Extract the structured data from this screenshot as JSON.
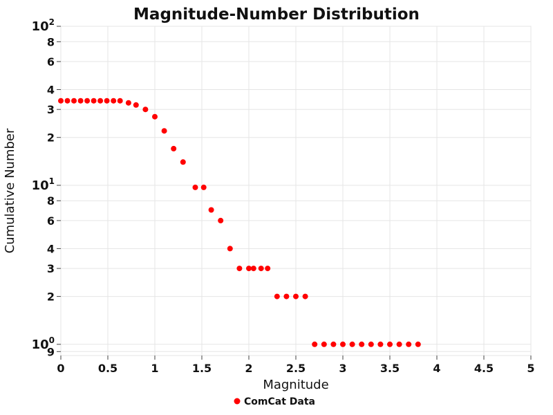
{
  "title": "Magnitude-Number Distribution",
  "chart_data": {
    "type": "scatter",
    "title": "Magnitude-Number Distribution",
    "xlabel": "Magnitude",
    "ylabel": "Cumulative Number",
    "x_range": [
      0,
      5
    ],
    "y_range": [
      0.85,
      100
    ],
    "y_scale": "log",
    "grid": true,
    "grid_color": "#e5e5e5",
    "tick_color": "#424242",
    "legend_position": "bottom-center",
    "x_ticks": [
      {
        "v": 0,
        "label": "0"
      },
      {
        "v": 0.5,
        "label": "0.5"
      },
      {
        "v": 1,
        "label": "1"
      },
      {
        "v": 1.5,
        "label": "1.5"
      },
      {
        "v": 2,
        "label": "2"
      },
      {
        "v": 2.5,
        "label": "2.5"
      },
      {
        "v": 3,
        "label": "3"
      },
      {
        "v": 3.5,
        "label": "3.5"
      },
      {
        "v": 4,
        "label": "4"
      },
      {
        "v": 4.5,
        "label": "4.5"
      },
      {
        "v": 5,
        "label": "5"
      }
    ],
    "y_ticks": [
      {
        "v": 100,
        "base": "10",
        "exp": "2"
      },
      {
        "v": 80,
        "label": "8"
      },
      {
        "v": 60,
        "label": "6"
      },
      {
        "v": 40,
        "label": "4"
      },
      {
        "v": 30,
        "label": "3"
      },
      {
        "v": 20,
        "label": "2"
      },
      {
        "v": 10,
        "base": "10",
        "exp": "1"
      },
      {
        "v": 8,
        "label": "8"
      },
      {
        "v": 6,
        "label": "6"
      },
      {
        "v": 4,
        "label": "4"
      },
      {
        "v": 3,
        "label": "3"
      },
      {
        "v": 2,
        "label": "2"
      },
      {
        "v": 1,
        "base": "10",
        "exp": "0"
      },
      {
        "v": 0.9,
        "label": "9"
      }
    ],
    "series": [
      {
        "name": "ComCat Data",
        "color": "#ff0000",
        "marker": "circle",
        "x": [
          0.0,
          0.07,
          0.14,
          0.21,
          0.28,
          0.35,
          0.42,
          0.49,
          0.56,
          0.63,
          0.72,
          0.8,
          0.9,
          1.0,
          1.1,
          1.2,
          1.3,
          1.43,
          1.52,
          1.6,
          1.7,
          1.8,
          1.9,
          2.0,
          2.05,
          2.13,
          2.2,
          2.3,
          2.4,
          2.5,
          2.6,
          2.7,
          2.8,
          2.9,
          3.0,
          3.1,
          3.2,
          3.3,
          3.4,
          3.5,
          3.6,
          3.7,
          3.8
        ],
        "y": [
          34,
          34,
          34,
          34,
          34,
          34,
          34,
          34,
          34,
          34,
          33,
          32,
          30,
          27,
          22,
          17,
          14,
          9.7,
          9.7,
          7,
          6,
          4,
          3,
          3,
          3,
          3,
          3,
          2,
          2,
          2,
          2,
          1,
          1,
          1,
          1,
          1,
          1,
          1,
          1,
          1,
          1,
          1,
          1
        ]
      }
    ]
  }
}
